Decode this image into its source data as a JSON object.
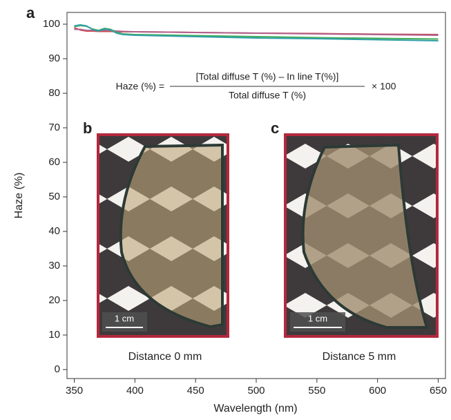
{
  "chart_data": {
    "type": "line",
    "panel_label": "a",
    "xlabel": "Wavelength (nm)",
    "ylabel": "Haze (%)",
    "x": [
      350,
      355,
      360,
      365,
      370,
      375,
      380,
      385,
      390,
      400,
      450,
      500,
      550,
      600,
      650
    ],
    "series": [
      {
        "color": "#d24b4b",
        "values": [
          99,
          98.3,
          98,
          98,
          97.9,
          97.9,
          97.9,
          97.8,
          97.8,
          97.8,
          97.6,
          97.4,
          97.3,
          97.1,
          97
        ]
      },
      {
        "color": "#b0608c",
        "values": [
          98.5,
          98.5,
          98.2,
          98.2,
          98.2,
          98.2,
          98.2,
          98,
          97.9,
          97.8,
          97.6,
          97.4,
          97.2,
          97,
          96.8
        ]
      },
      {
        "color": "#44ad5a",
        "values": [
          99.3,
          99.6,
          99.4,
          98.6,
          98.2,
          98.8,
          98.5,
          97.6,
          97.2,
          97,
          96.7,
          96.4,
          96.1,
          95.9,
          95.7
        ]
      },
      {
        "color": "#2f9fa8",
        "values": [
          99.5,
          99.8,
          99.5,
          98.5,
          98,
          98.6,
          98.3,
          97.4,
          97,
          96.8,
          96.4,
          96,
          95.8,
          95.5,
          95.2
        ]
      }
    ],
    "xlim": [
      344,
      656
    ],
    "ylim": [
      -2.6,
      103.4
    ],
    "xticks": [
      350,
      400,
      450,
      500,
      550,
      600,
      650
    ],
    "yticks": [
      0,
      10,
      20,
      30,
      40,
      50,
      60,
      70,
      80,
      90,
      100
    ],
    "annotation": {
      "lhs": "Haze (%) =",
      "numerator": "[Total diffuse T (%) – In line T(%)]",
      "denominator": "Total diffuse T (%)",
      "rhs": "× 100"
    },
    "insets": [
      {
        "label": "b",
        "scale_bar": "1 cm",
        "caption": "Distance 0 mm"
      },
      {
        "label": "c",
        "scale_bar": "1 cm",
        "caption": "Distance 5 mm"
      }
    ]
  }
}
